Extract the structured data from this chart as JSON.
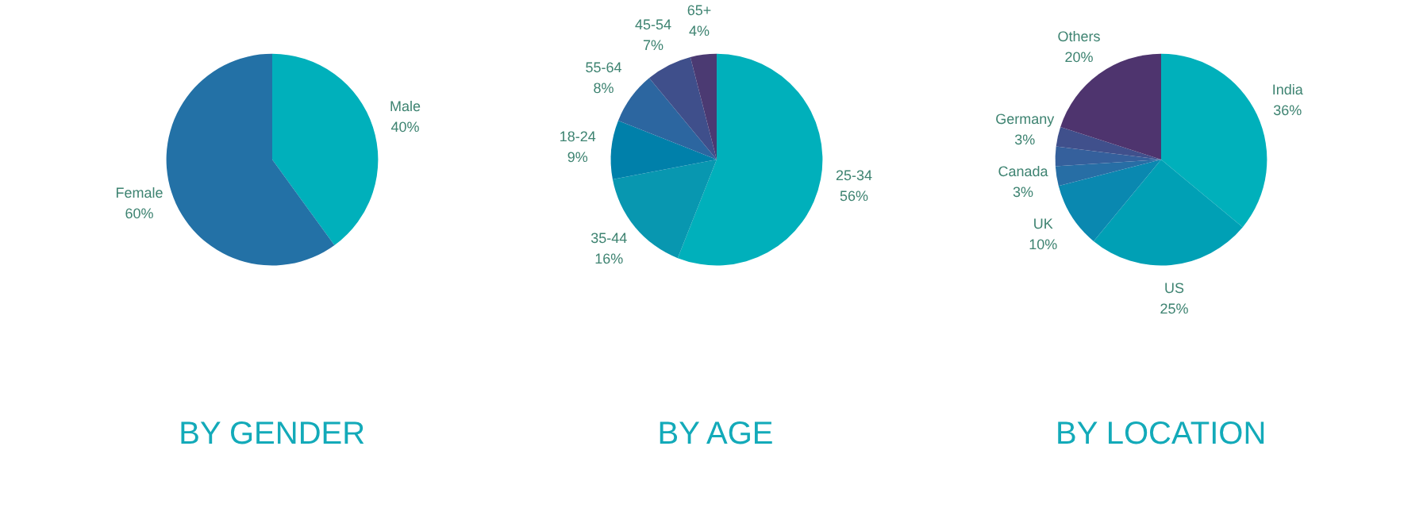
{
  "chart_data": [
    {
      "type": "pie",
      "title": "BY GENDER",
      "categories": [
        "Male",
        "Female"
      ],
      "values": [
        40,
        60
      ],
      "value_labels": [
        "40%",
        "60%"
      ],
      "colors": [
        "#00b0bb",
        "#2371a6"
      ]
    },
    {
      "type": "pie",
      "title": "BY AGE",
      "categories": [
        "25-34",
        "35-44",
        "18-24",
        "55-64",
        "45-54",
        "65+"
      ],
      "values": [
        56,
        16,
        9,
        8,
        7,
        4
      ],
      "value_labels": [
        "56%",
        "16%",
        "9%",
        "8%",
        "7%",
        "4%"
      ],
      "colors": [
        "#00b0bb",
        "#0897b0",
        "#0080aa",
        "#2c66a0",
        "#3f4f8b",
        "#4b3a72"
      ]
    },
    {
      "type": "pie",
      "title": "BY LOCATION",
      "categories": [
        "India",
        "US",
        "UK",
        "Canada",
        null,
        "Germany",
        "Others"
      ],
      "values": [
        36,
        25,
        10,
        3,
        3,
        3,
        20
      ],
      "value_labels": [
        "36%",
        "25%",
        "10%",
        "3%",
        null,
        "3%",
        "20%"
      ],
      "colors": [
        "#00b0bb",
        "#00a0b5",
        "#0a88b0",
        "#276ea5",
        "#35609c",
        "#40508c",
        "#4e346e"
      ]
    }
  ]
}
